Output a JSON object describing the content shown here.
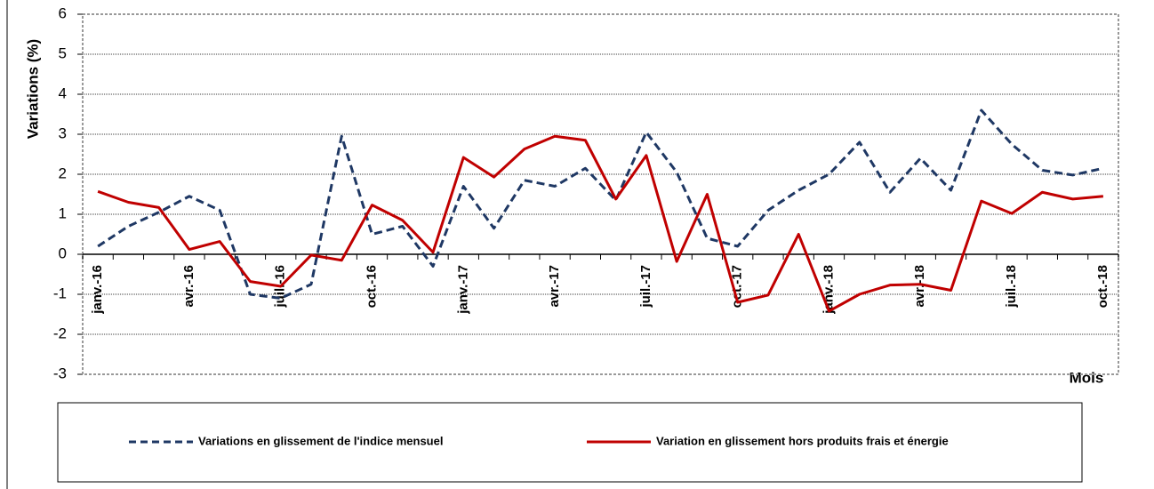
{
  "chart_data": {
    "type": "line",
    "y_label": "Variations (%)",
    "x_label": "Mois",
    "categories": [
      "janv.-16",
      null,
      null,
      "avr.-16",
      null,
      null,
      "juil.-16",
      null,
      null,
      "oct.-16",
      null,
      null,
      "janv.-17",
      null,
      null,
      "avr.-17",
      null,
      null,
      "juil.-17",
      null,
      null,
      "oct.-17",
      null,
      null,
      "janv.-18",
      null,
      null,
      "avr.-18",
      null,
      null,
      "juil.-18",
      null,
      null,
      "oct.-18"
    ],
    "series": [
      {
        "name": "Variations en glissement de l'indice mensuel",
        "color": "#1f3864",
        "dashed": true,
        "values": [
          0.2,
          0.7,
          1.05,
          1.45,
          1.1,
          -1.0,
          -1.1,
          -0.75,
          2.95,
          0.5,
          0.7,
          -0.3,
          1.7,
          0.65,
          1.85,
          1.7,
          2.15,
          1.35,
          3.05,
          2.05,
          0.4,
          0.2,
          1.1,
          1.6,
          2.0,
          2.8,
          1.55,
          2.4,
          1.6,
          3.6,
          2.75,
          2.1,
          1.98,
          2.15
        ]
      },
      {
        "name": "Variation en glissement hors produits frais et énergie",
        "color": "#c00000",
        "dashed": false,
        "values": [
          1.57,
          1.3,
          1.17,
          0.12,
          0.32,
          -0.68,
          -0.8,
          -0.02,
          -0.15,
          1.23,
          0.85,
          0.05,
          2.42,
          1.93,
          2.63,
          2.95,
          2.85,
          1.38,
          2.47,
          -0.18,
          1.5,
          -1.2,
          -1.02,
          0.5,
          -1.42,
          -1.0,
          -0.77,
          -0.75,
          -0.9,
          1.33,
          1.02,
          1.55,
          1.38,
          1.45
        ]
      }
    ],
    "ylim": [
      -3,
      6
    ],
    "yticks": [
      -3,
      -2,
      -1,
      0,
      1,
      2,
      3,
      4,
      5,
      6
    ],
    "grid": true
  }
}
